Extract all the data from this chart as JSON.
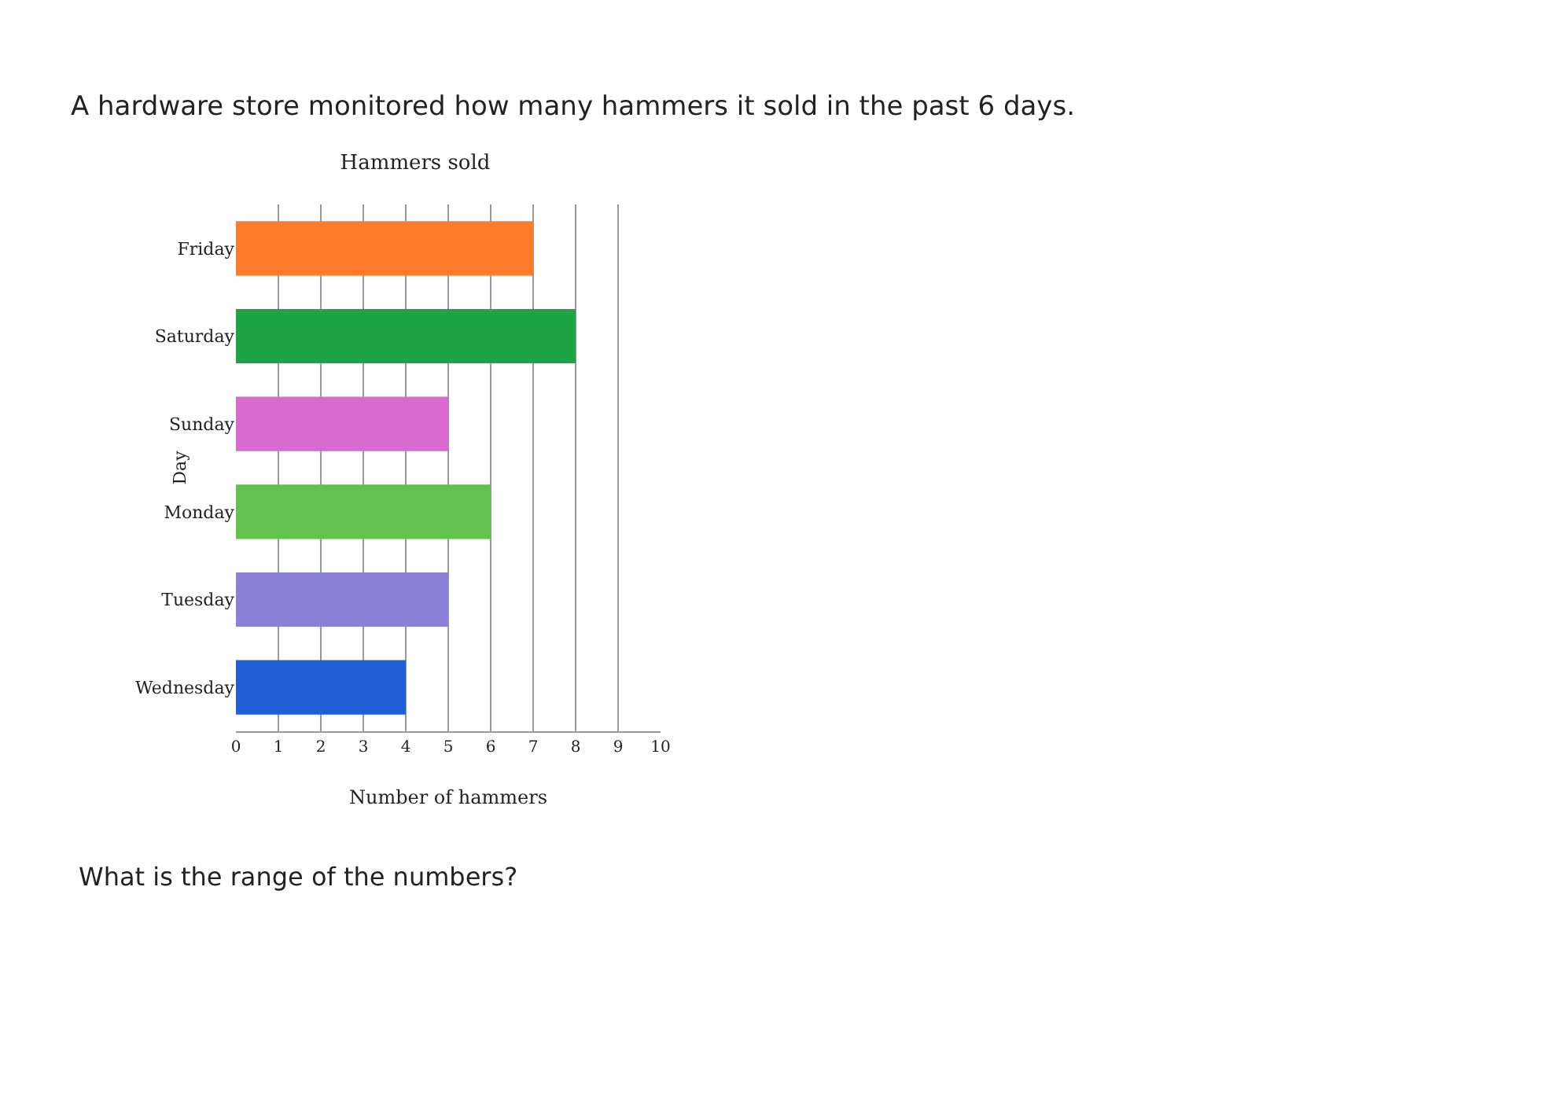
{
  "chart_data": {
    "type": "bar",
    "orientation": "horizontal",
    "title": "Hammers sold",
    "subtitle": "A hardware store monitored how many hammers it sold in the past 6 days.",
    "xlabel": "Number of hammers",
    "ylabel": "Day",
    "categories": [
      "Friday",
      "Saturday",
      "Sunday",
      "Monday",
      "Tuesday",
      "Wednesday"
    ],
    "values": [
      7,
      8,
      5,
      6,
      5,
      4
    ],
    "colors": [
      "#ff7a2a",
      "#1fa347",
      "#d96ad0",
      "#62c24e",
      "#8a80d8",
      "#1f5fd6"
    ],
    "xlim": [
      0,
      10
    ],
    "xticks": [
      0,
      1,
      2,
      3,
      4,
      5,
      6,
      7,
      8,
      9,
      10
    ],
    "grid": "x",
    "annotations": [
      "What is the range of the numbers?"
    ]
  }
}
